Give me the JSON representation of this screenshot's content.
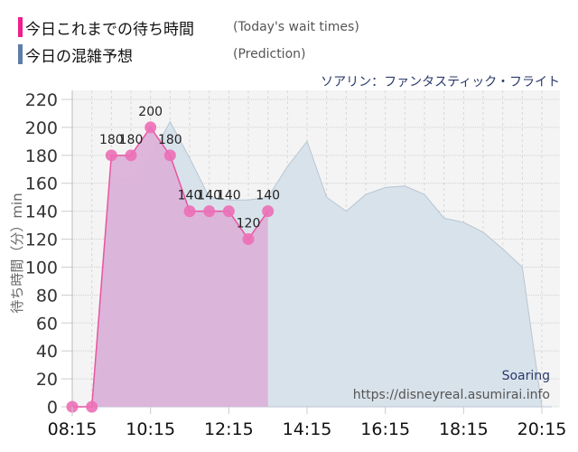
{
  "legend": [
    {
      "label": "今日これまでの待ち時間",
      "sub": "(Today's wait times)",
      "color": "#f01f8c"
    },
    {
      "label": "今日の混雑予想",
      "sub": "(Prediction)",
      "color": "#5d7dab"
    }
  ],
  "attraction": "ソアリン：ファンタスティック・フライト",
  "watermark": {
    "name": "Soaring",
    "url": "https://disneyreal.asumirai.info"
  },
  "colors": {
    "actual_fill": "#dcb2d9",
    "actual_line": "#e8559f",
    "actual_point": "#ec6fb6",
    "prediction_fill": "#d8e2ea",
    "prediction_line": "#b8c6d2",
    "plot_bg": "#f4f4f4"
  },
  "chart_data": {
    "type": "area",
    "title": "ソアリン：ファンタスティック・フライト",
    "xlabel": "",
    "ylabel": "待ち時間（分）min",
    "ylim": [
      0,
      220
    ],
    "yticks": [
      0,
      20,
      40,
      60,
      80,
      100,
      120,
      140,
      160,
      180,
      200,
      220
    ],
    "xticks": [
      "08:15",
      "10:15",
      "12:15",
      "14:15",
      "16:15",
      "18:15",
      "20:15"
    ],
    "grid": true,
    "legend_position": "top-left",
    "series": [
      {
        "name": "今日これまでの待ち時間 (Today's wait times)",
        "x": [
          "08:15",
          "08:45",
          "09:15",
          "09:45",
          "10:15",
          "10:45",
          "11:15",
          "11:45",
          "12:15",
          "12:45",
          "13:15"
        ],
        "values": [
          0,
          0,
          180,
          180,
          200,
          180,
          140,
          140,
          140,
          120,
          140
        ],
        "labels": [
          "",
          "",
          "180",
          "180",
          "200",
          "180",
          "140",
          "140",
          "140",
          "120",
          "140"
        ]
      },
      {
        "name": "今日の混雑予想 (Prediction)",
        "x": [
          "08:15",
          "08:45",
          "09:15",
          "09:45",
          "10:15",
          "10:45",
          "11:15",
          "11:45",
          "12:15",
          "12:45",
          "13:15",
          "13:45",
          "14:15",
          "14:45",
          "15:15",
          "15:45",
          "16:15",
          "16:45",
          "17:15",
          "17:45",
          "18:15",
          "18:45",
          "19:15",
          "19:45",
          "20:15",
          "20:30"
        ],
        "values": [
          0,
          0,
          165,
          162,
          178,
          204,
          178,
          150,
          148,
          148,
          150,
          172,
          190,
          150,
          140,
          152,
          157,
          158,
          152,
          135,
          132,
          125,
          113,
          100,
          0,
          0
        ]
      }
    ]
  }
}
